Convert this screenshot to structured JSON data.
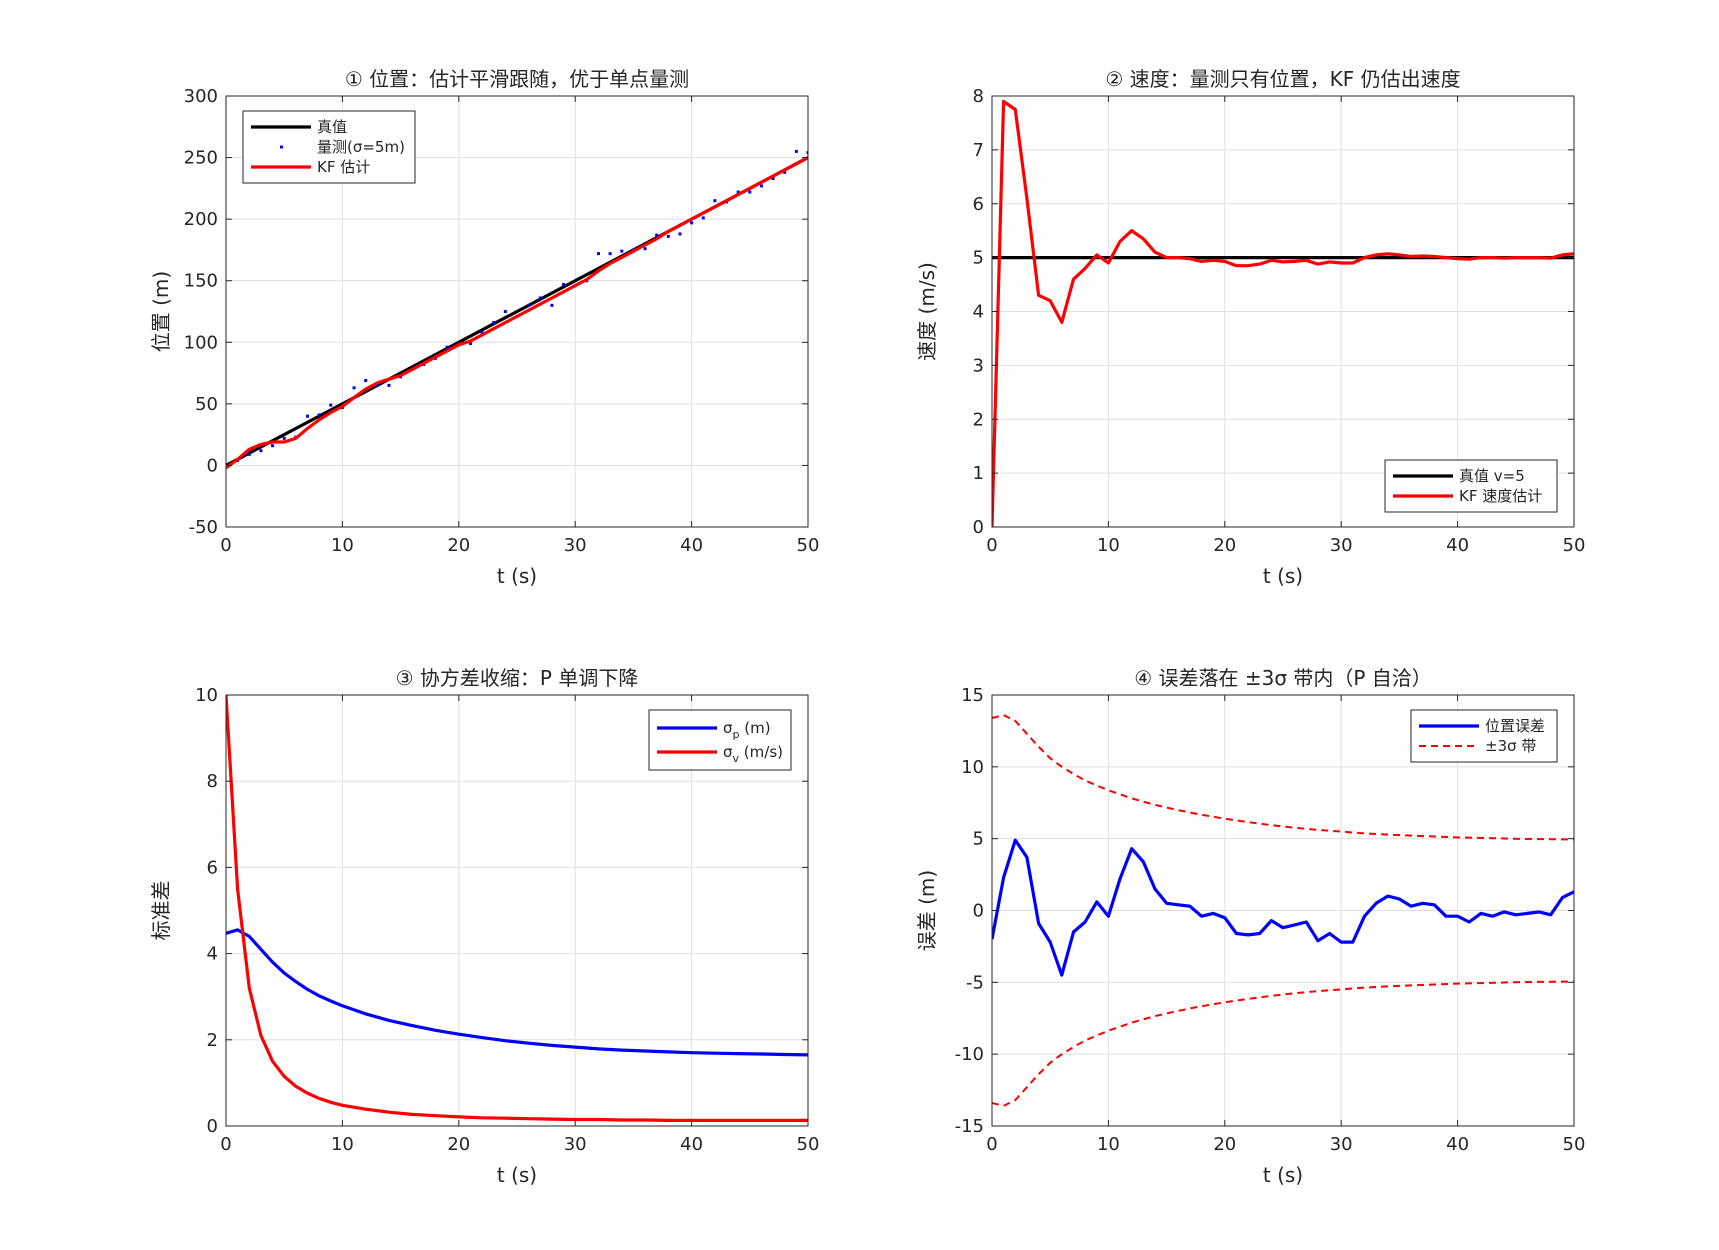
{
  "chart_data": [
    {
      "type": "line",
      "title": "① 位置：估计平滑跟随，优于单点量测",
      "xlabel": "t (s)",
      "ylabel": "位置 (m)",
      "xlim": [
        0,
        50
      ],
      "ylim": [
        -50,
        300
      ],
      "xticks": [
        0,
        10,
        20,
        30,
        40,
        50
      ],
      "yticks": [
        -50,
        0,
        50,
        100,
        150,
        200,
        250,
        300
      ],
      "grid": true,
      "legend_position": "top-left",
      "series": [
        {
          "name": "真值",
          "style": "line",
          "color": "#000000",
          "x": [
            0,
            50
          ],
          "y": [
            0,
            250
          ]
        },
        {
          "name": "量测(σ=5m)",
          "style": "marker",
          "color": "#0000ff",
          "x": [
            1,
            2,
            3,
            4,
            5,
            6,
            7,
            8,
            9,
            10,
            11,
            12,
            13,
            14,
            15,
            16,
            17,
            18,
            19,
            20,
            21,
            22,
            23,
            24,
            25,
            26,
            27,
            28,
            29,
            30,
            31,
            32,
            33,
            34,
            35,
            36,
            37,
            38,
            39,
            40,
            41,
            42,
            43,
            44,
            45,
            46,
            47,
            48,
            49,
            50
          ],
          "y": [
            4,
            9,
            12,
            16,
            22,
            23,
            40,
            41,
            49,
            47,
            63,
            69,
            65,
            65,
            72,
            78,
            82,
            87,
            96,
            98,
            99,
            108,
            116,
            125,
            121,
            130,
            136,
            130,
            147,
            146,
            150,
            172,
            172,
            174,
            175,
            176,
            187,
            186,
            188,
            197,
            201,
            215,
            214,
            222,
            222,
            227,
            233,
            238,
            255,
            254
          ]
        },
        {
          "name": "KF 估计",
          "style": "line",
          "color": "#ff0000",
          "x": [
            0,
            1,
            2,
            3,
            4,
            5,
            6,
            7,
            8,
            9,
            10,
            11,
            12,
            13,
            14,
            15,
            16,
            17,
            18,
            19,
            20,
            21,
            22,
            23,
            24,
            25,
            26,
            27,
            28,
            29,
            30,
            31,
            32,
            33,
            34,
            35,
            36,
            37,
            38,
            39,
            40,
            41,
            42,
            43,
            44,
            45,
            46,
            47,
            48,
            49,
            50
          ],
          "y": [
            -2,
            5,
            13,
            17,
            19,
            19,
            22,
            30,
            37,
            43,
            48,
            55,
            62,
            67,
            70,
            73,
            78,
            83,
            88,
            93,
            98,
            101,
            106,
            111,
            116,
            121,
            126,
            131,
            136,
            141,
            146,
            151,
            158,
            164,
            169,
            174,
            179,
            184,
            190,
            195,
            200,
            205,
            210,
            215,
            220,
            225,
            230,
            235,
            240,
            245,
            250
          ]
        }
      ]
    },
    {
      "type": "line",
      "title": "② 速度：量测只有位置，KF 仍估出速度",
      "xlabel": "t (s)",
      "ylabel": "速度 (m/s)",
      "xlim": [
        0,
        50
      ],
      "ylim": [
        0,
        8
      ],
      "xticks": [
        0,
        10,
        20,
        30,
        40,
        50
      ],
      "yticks": [
        0,
        1,
        2,
        3,
        4,
        5,
        6,
        7,
        8
      ],
      "grid": true,
      "legend_position": "bottom-right",
      "series": [
        {
          "name": "真值 v=5",
          "style": "line",
          "color": "#000000",
          "x": [
            0,
            50
          ],
          "y": [
            5,
            5
          ]
        },
        {
          "name": "KF 速度估计",
          "style": "line",
          "color": "#ff0000",
          "x": [
            0,
            1,
            2,
            3,
            4,
            5,
            6,
            7,
            8,
            9,
            10,
            11,
            12,
            13,
            14,
            15,
            16,
            17,
            18,
            19,
            20,
            21,
            22,
            23,
            24,
            25,
            26,
            27,
            28,
            29,
            30,
            31,
            32,
            33,
            34,
            35,
            36,
            37,
            38,
            39,
            40,
            41,
            42,
            43,
            44,
            45,
            46,
            47,
            48,
            49,
            50
          ],
          "y": [
            0,
            7.9,
            7.75,
            6.1,
            4.3,
            4.2,
            3.8,
            4.6,
            4.8,
            5.05,
            4.9,
            5.3,
            5.5,
            5.35,
            5.1,
            5.0,
            5.0,
            4.98,
            4.93,
            4.95,
            4.93,
            4.85,
            4.85,
            4.88,
            4.95,
            4.92,
            4.93,
            4.95,
            4.88,
            4.92,
            4.9,
            4.9,
            5.0,
            5.05,
            5.07,
            5.05,
            5.02,
            5.03,
            5.02,
            5.0,
            4.98,
            4.97,
            5.0,
            5.0,
            4.99,
            5.0,
            5.0,
            5.0,
            4.99,
            5.05,
            5.07
          ]
        }
      ]
    },
    {
      "type": "line",
      "title": "③ 协方差收缩：P 单调下降",
      "xlabel": "t (s)",
      "ylabel": "标准差",
      "xlim": [
        0,
        50
      ],
      "ylim": [
        0,
        10
      ],
      "xticks": [
        0,
        10,
        20,
        30,
        40,
        50
      ],
      "yticks": [
        0,
        2,
        4,
        6,
        8,
        10
      ],
      "grid": true,
      "legend_position": "top-right",
      "series": [
        {
          "name": "σp (m)",
          "legend_base": "σ",
          "legend_sub": "p",
          "legend_tail": " (m)",
          "style": "line",
          "color": "#0000ff",
          "x": [
            0,
            1,
            2,
            3,
            4,
            5,
            6,
            7,
            8,
            9,
            10,
            12,
            14,
            16,
            18,
            20,
            22,
            24,
            26,
            28,
            30,
            32,
            34,
            36,
            38,
            40,
            42,
            44,
            46,
            48,
            50
          ],
          "y": [
            4.47,
            4.55,
            4.4,
            4.1,
            3.8,
            3.55,
            3.35,
            3.17,
            3.02,
            2.9,
            2.79,
            2.6,
            2.45,
            2.33,
            2.22,
            2.13,
            2.05,
            1.98,
            1.92,
            1.87,
            1.83,
            1.79,
            1.76,
            1.74,
            1.72,
            1.7,
            1.69,
            1.68,
            1.67,
            1.66,
            1.65
          ]
        },
        {
          "name": "σv (m/s)",
          "legend_base": "σ",
          "legend_sub": "v",
          "legend_tail": " (m/s)",
          "style": "line",
          "color": "#ff0000",
          "x": [
            0,
            1,
            2,
            3,
            4,
            5,
            6,
            7,
            8,
            9,
            10,
            12,
            14,
            16,
            18,
            20,
            22,
            24,
            26,
            28,
            30,
            32,
            34,
            36,
            38,
            40,
            42,
            44,
            46,
            48,
            50
          ],
          "y": [
            10,
            5.5,
            3.2,
            2.1,
            1.5,
            1.15,
            0.92,
            0.76,
            0.64,
            0.55,
            0.48,
            0.39,
            0.32,
            0.27,
            0.24,
            0.21,
            0.19,
            0.18,
            0.17,
            0.16,
            0.15,
            0.15,
            0.14,
            0.14,
            0.13,
            0.13,
            0.13,
            0.13,
            0.13,
            0.13,
            0.13
          ]
        }
      ]
    },
    {
      "type": "line",
      "title": "④ 误差落在 ±3σ 带内（P 自洽）",
      "xlabel": "t (s)",
      "ylabel": "误差 (m)",
      "xlim": [
        0,
        50
      ],
      "ylim": [
        -15,
        15
      ],
      "xticks": [
        0,
        10,
        20,
        30,
        40,
        50
      ],
      "yticks": [
        -15,
        -10,
        -5,
        0,
        5,
        10,
        15
      ],
      "grid": true,
      "legend_position": "top-right",
      "series": [
        {
          "name": "位置误差",
          "style": "line",
          "color": "#0000ff",
          "x": [
            0,
            1,
            2,
            3,
            4,
            5,
            6,
            7,
            8,
            9,
            10,
            11,
            12,
            13,
            14,
            15,
            16,
            17,
            18,
            19,
            20,
            21,
            22,
            23,
            24,
            25,
            26,
            27,
            28,
            29,
            30,
            31,
            32,
            33,
            34,
            35,
            36,
            37,
            38,
            39,
            40,
            41,
            42,
            43,
            44,
            45,
            46,
            47,
            48,
            49,
            50
          ],
          "y": [
            -2.0,
            2.3,
            4.9,
            3.7,
            -0.9,
            -2.2,
            -4.5,
            -1.5,
            -0.8,
            0.6,
            -0.4,
            2.2,
            4.3,
            3.4,
            1.5,
            0.5,
            0.4,
            0.3,
            -0.4,
            -0.2,
            -0.5,
            -1.6,
            -1.7,
            -1.6,
            -0.7,
            -1.2,
            -1.0,
            -0.8,
            -2.1,
            -1.6,
            -2.2,
            -2.2,
            -0.4,
            0.5,
            1.0,
            0.8,
            0.3,
            0.5,
            0.4,
            -0.4,
            -0.4,
            -0.8,
            -0.2,
            -0.4,
            -0.1,
            -0.3,
            -0.2,
            -0.1,
            -0.3,
            0.9,
            1.3
          ]
        },
        {
          "name": "±3σ 带",
          "style": "dashed",
          "color": "#ff0000",
          "symmetric": true,
          "x": [
            0,
            1,
            2,
            3,
            4,
            5,
            6,
            7,
            8,
            9,
            10,
            12,
            14,
            16,
            18,
            20,
            22,
            24,
            26,
            28,
            30,
            32,
            34,
            36,
            38,
            40,
            42,
            44,
            46,
            48,
            50
          ],
          "y": [
            13.4,
            13.6,
            13.2,
            12.3,
            11.4,
            10.6,
            10.0,
            9.5,
            9.05,
            8.7,
            8.37,
            7.8,
            7.35,
            6.98,
            6.66,
            6.39,
            6.15,
            5.94,
            5.76,
            5.61,
            5.49,
            5.37,
            5.28,
            5.21,
            5.15,
            5.09,
            5.05,
            5.01,
            4.98,
            4.96,
            4.94
          ]
        }
      ]
    }
  ]
}
